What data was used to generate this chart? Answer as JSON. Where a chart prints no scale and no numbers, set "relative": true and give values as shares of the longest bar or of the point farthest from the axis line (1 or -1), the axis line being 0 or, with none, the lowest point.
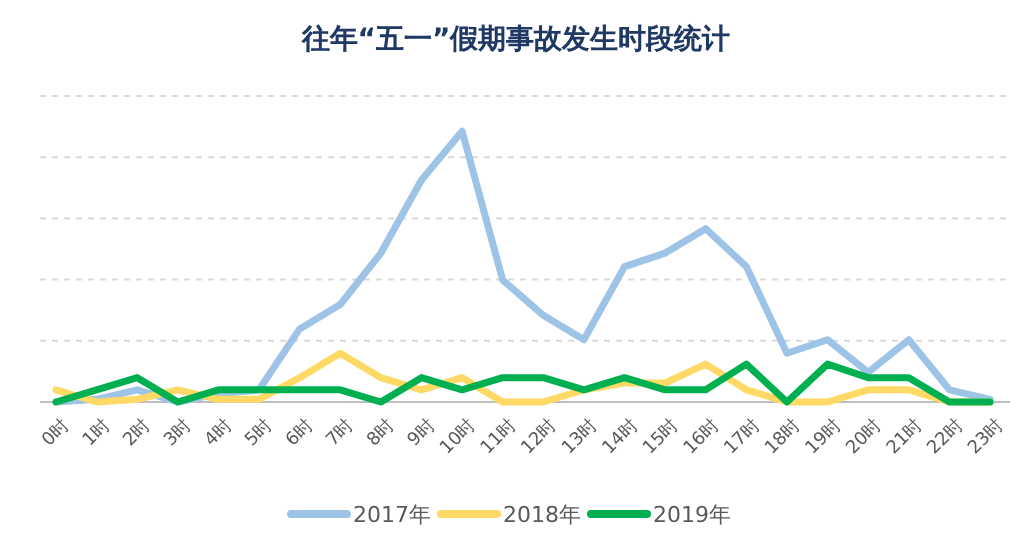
{
  "chart_data": {
    "type": "line",
    "title": "往年“五一”假期事故发生时段统计",
    "relative": true,
    "grid": "y",
    "legend": "bottom",
    "marker": "none",
    "line_style": "solid",
    "categories": [
      "0时",
      "1时",
      "2时",
      "3时",
      "4时",
      "5时",
      "6时",
      "7时",
      "8时",
      "9时",
      "10时",
      "11时",
      "12时",
      "13时",
      "14时",
      "15时",
      "16时",
      "17时",
      "18时",
      "19时",
      "20时",
      "21时",
      "22时",
      "23时"
    ],
    "series": [
      {
        "name": "2017年",
        "color": "#9dc3e6",
        "values": [
          0,
          0.01,
          0.045,
          0,
          0.03,
          0.045,
          0.27,
          0.36,
          0.55,
          0.82,
          1,
          0.45,
          0.32,
          0.23,
          0.5,
          0.55,
          0.64,
          0.5,
          0.18,
          0.23,
          0.11,
          0.23,
          0.045,
          0.01
        ]
      },
      {
        "name": "2018年",
        "color": "#ffd966",
        "values": [
          0.045,
          0,
          0.01,
          0.045,
          0.01,
          0.01,
          0.09,
          0.18,
          0.09,
          0.045,
          0.09,
          0,
          0,
          0.045,
          0.07,
          0.07,
          0.14,
          0.045,
          0,
          0,
          0.045,
          0.045,
          0,
          0
        ]
      },
      {
        "name": "2019年",
        "color": "#00b050",
        "values": [
          0,
          0.045,
          0.09,
          0,
          0.045,
          0.045,
          0.045,
          0.045,
          0,
          0.09,
          0.045,
          0.09,
          0.09,
          0.045,
          0.09,
          0.045,
          0.045,
          0.14,
          0,
          0.14,
          0.09,
          0.09,
          0,
          0
        ]
      }
    ]
  }
}
